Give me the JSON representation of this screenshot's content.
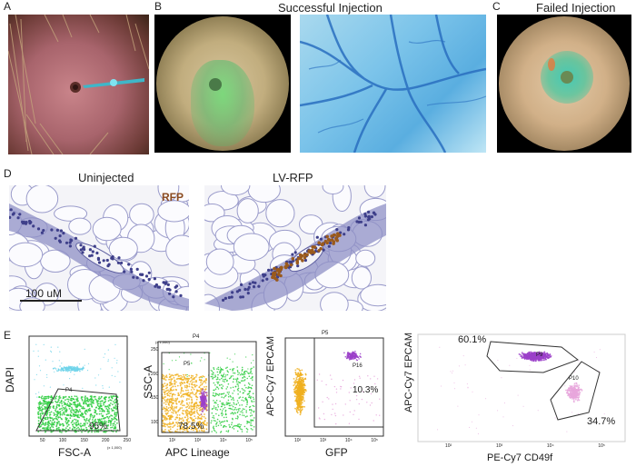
{
  "panel_labels": {
    "a": "A",
    "b": "B",
    "c": "C",
    "d": "D",
    "e": "E"
  },
  "titles": {
    "successful": "Successful Injection",
    "failed": "Failed Injection",
    "uninjected": "Uninjected",
    "lvrfp": "LV-RFP"
  },
  "histology": {
    "rfp_label": "RFP",
    "scale_bar": "100 uM"
  },
  "flow": {
    "plot1": {
      "ylabel": "DAPI",
      "xlabel": "FSC-A",
      "x_ticks": [
        "50",
        "100",
        "150",
        "200",
        "250"
      ],
      "x_mult": "(x 1,000)",
      "gate": "P4",
      "pct": "95%"
    },
    "plot2": {
      "ylabel": "SSC-A",
      "xlabel": "APC Lineage",
      "y_ticks": [
        "100",
        "150",
        "200",
        "250"
      ],
      "y_mult": "(x 1,000)",
      "x_ticks": [
        "10²",
        "10³",
        "10⁴",
        "10⁵"
      ],
      "top": "P4",
      "gate": "P5",
      "pct": "78.5%"
    },
    "plot3": {
      "ylabel": "APC-Cy7 EPCAM",
      "xlabel": "GFP",
      "x_ticks": [
        "10²",
        "10³",
        "10⁴",
        "10⁵"
      ],
      "top": "P5",
      "gate": "P16",
      "pct": "10.3%"
    },
    "plot4": {
      "ylabel": "APC-Cy7 EPCAM",
      "xlabel": "PE-Cy7 CD49f",
      "x_ticks": [
        "10²",
        "10³",
        "10⁴",
        "10⁵"
      ],
      "gate_a": "P9",
      "gate_b": "P10",
      "pct_a": "60.1%",
      "pct_b": "34.7%"
    }
  },
  "colors": {
    "green": "#2ecc40",
    "cyan": "#6fd3ea",
    "orange": "#f0b020",
    "purple": "#9b3fc9",
    "pink": "#e7a6dc"
  }
}
